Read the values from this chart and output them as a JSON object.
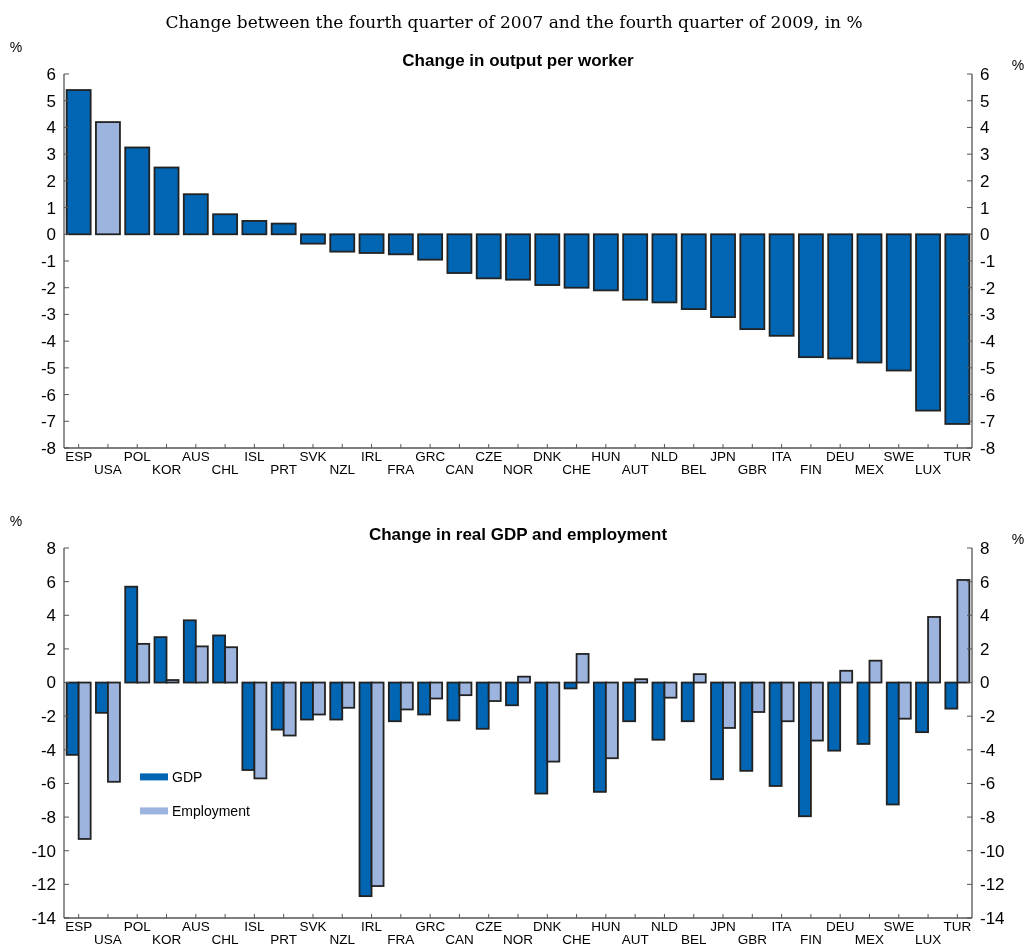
{
  "chart_data": [
    {
      "type": "bar",
      "subtitle": "Change between the fourth quarter of 2007 and the fourth quarter of 2009, in %",
      "title": "Change in output per worker",
      "ylabel": "%",
      "y2label": "%",
      "categories": [
        "ESP",
        "USA",
        "POL",
        "KOR",
        "AUS",
        "CHL",
        "ISL",
        "PRT",
        "SVK",
        "NZL",
        "IRL",
        "FRA",
        "GRC",
        "CAN",
        "CZE",
        "NOR",
        "DNK",
        "CHE",
        "HUN",
        "AUT",
        "NLD",
        "BEL",
        "JPN",
        "GBR",
        "ITA",
        "FIN",
        "DEU",
        "MEX",
        "SWE",
        "LUX",
        "TUR"
      ],
      "values": [
        5.4,
        4.2,
        3.25,
        2.5,
        1.5,
        0.75,
        0.5,
        0.4,
        -0.35,
        -0.65,
        -0.7,
        -0.75,
        -0.95,
        -1.45,
        -1.65,
        -1.7,
        -1.9,
        -2.0,
        -2.1,
        -2.45,
        -2.55,
        -2.8,
        -3.1,
        -3.55,
        -3.8,
        -4.6,
        -4.65,
        -4.8,
        -5.1,
        -6.6,
        -7.1
      ],
      "colors": [
        "#0066b3",
        "#9db5de",
        "#0066b3",
        "#0066b3",
        "#0066b3",
        "#0066b3",
        "#0066b3",
        "#0066b3",
        "#0066b3",
        "#0066b3",
        "#0066b3",
        "#0066b3",
        "#0066b3",
        "#0066b3",
        "#0066b3",
        "#0066b3",
        "#0066b3",
        "#0066b3",
        "#0066b3",
        "#0066b3",
        "#0066b3",
        "#0066b3",
        "#0066b3",
        "#0066b3",
        "#0066b3",
        "#0066b3",
        "#0066b3",
        "#0066b3",
        "#0066b3",
        "#0066b3",
        "#0066b3"
      ],
      "ylim": [
        -8,
        6
      ],
      "yticks": [
        -8,
        -7,
        -6,
        -5,
        -4,
        -3,
        -2,
        -1,
        0,
        1,
        2,
        3,
        4,
        5,
        6
      ],
      "y2lim": [
        -8,
        6
      ],
      "y2ticks": [
        -8,
        -7,
        -6,
        -5,
        -4,
        -3,
        -2,
        -1,
        0,
        1,
        2,
        3,
        4,
        5,
        6
      ],
      "grid": false
    },
    {
      "type": "bar",
      "title": "Change in real GDP and employment",
      "ylabel": "%",
      "y2label": "%",
      "categories": [
        "ESP",
        "USA",
        "POL",
        "KOR",
        "AUS",
        "CHL",
        "ISL",
        "PRT",
        "SVK",
        "NZL",
        "IRL",
        "FRA",
        "GRC",
        "CAN",
        "CZE",
        "NOR",
        "DNK",
        "CHE",
        "HUN",
        "AUT",
        "NLD",
        "BEL",
        "JPN",
        "GBR",
        "ITA",
        "FIN",
        "DEU",
        "MEX",
        "SWE",
        "LUX",
        "TUR"
      ],
      "series": [
        {
          "name": "GDP",
          "color": "#0066b3",
          "values": [
            -4.3,
            -1.8,
            5.7,
            2.7,
            3.7,
            2.8,
            -5.2,
            -2.8,
            -2.2,
            -2.2,
            -12.7,
            -2.3,
            -1.9,
            -2.25,
            -2.75,
            -1.35,
            -6.6,
            -0.35,
            -6.5,
            -2.3,
            -3.4,
            -2.3,
            -5.75,
            -5.25,
            -6.15,
            -7.95,
            -4.05,
            -3.65,
            -7.25,
            -2.95,
            -1.55
          ]
        },
        {
          "name": "Employment",
          "color": "#9db5de",
          "values": [
            -9.3,
            -5.9,
            2.3,
            0.15,
            2.15,
            2.1,
            -5.7,
            -3.15,
            -1.9,
            -1.5,
            -12.1,
            -1.6,
            -0.95,
            -0.75,
            -1.1,
            0.35,
            -4.7,
            1.7,
            -4.5,
            0.2,
            -0.9,
            0.5,
            -2.7,
            -1.75,
            -2.3,
            -3.45,
            0.7,
            1.3,
            -2.15,
            3.9,
            6.1
          ]
        }
      ],
      "ylim": [
        -14,
        8
      ],
      "yticks": [
        -14,
        -12,
        -10,
        -8,
        -6,
        -4,
        -2,
        0,
        2,
        4,
        6,
        8
      ],
      "y2lim": [
        -14,
        8
      ],
      "y2ticks": [
        -14,
        -12,
        -10,
        -8,
        -6,
        -4,
        -2,
        0,
        2,
        4,
        6,
        8
      ],
      "grid": false,
      "legend": "left"
    }
  ]
}
